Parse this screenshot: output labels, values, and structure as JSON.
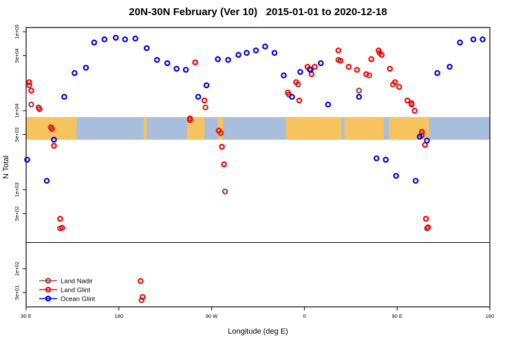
{
  "title": "20N-30N February (Ver 10)   2015-01-01 to 2020-12-18",
  "chart_data": {
    "type": "scatter",
    "title": "20N-30N February (Ver 10)   2015-01-01 to 2020-12-18",
    "xlabel": "Longitude (deg E)",
    "ylabel": "N Total",
    "y_scale": "log10",
    "x_range": [
      90,
      540
    ],
    "y_range": [
      33,
      113000
    ],
    "x_ticks": [
      {
        "value": 90,
        "label": "90 E"
      },
      {
        "value": 180,
        "label": "180"
      },
      {
        "value": 270,
        "label": "90 W"
      },
      {
        "value": 360,
        "label": "0"
      },
      {
        "value": 450,
        "label": "90 E"
      },
      {
        "value": 540,
        "label": "180"
      }
    ],
    "y_ticks": [
      {
        "value": 100000,
        "label": "1e+05"
      },
      {
        "value": 50000,
        "label": "5e+04"
      },
      {
        "value": 10000,
        "label": "1e+04"
      },
      {
        "value": 5000,
        "label": "5e+03"
      },
      {
        "value": 1000,
        "label": "1e+03"
      },
      {
        "value": 500,
        "label": "5e+02"
      },
      {
        "value": 100,
        "label": "1e+02"
      },
      {
        "value": 50,
        "label": "5e+01"
      }
    ],
    "separator_value": 215,
    "map_band": {
      "description": "world map strip for 20N-30N latitude band",
      "value_top": 8300,
      "value_bottom": 4300,
      "ocean_color": "#a9bedd",
      "land_color": "#f6c35e",
      "land_segments": [
        [
          90,
          139
        ],
        [
          204,
          207
        ],
        [
          246,
          263
        ],
        [
          276,
          281
        ],
        [
          342,
          396
        ],
        [
          399,
          437
        ],
        [
          442,
          481
        ]
      ]
    },
    "legend": {
      "position": "bottom-left",
      "entries": [
        {
          "label": "Land Nadir",
          "color": "#a0403a"
        },
        {
          "label": "Land Glint",
          "color": "#ff0000"
        },
        {
          "label": "Ocean Glint",
          "color": "#0000ee"
        }
      ]
    },
    "series": [
      {
        "name": "Land Nadir",
        "color": "#a0403a",
        "points": [
          [
            93,
            21000
          ],
          [
            95,
            12000
          ],
          [
            102,
            11000
          ],
          [
            114,
            6200
          ],
          [
            123,
            325
          ],
          [
            202,
            40
          ],
          [
            249,
            7600
          ],
          [
            264,
            11000
          ],
          [
            279,
            5200
          ],
          [
            283,
            950
          ],
          [
            345,
            16000
          ],
          [
            354,
            21500
          ],
          [
            365,
            33500
          ],
          [
            393,
            44000
          ],
          [
            413,
            18000
          ],
          [
            423,
            28000
          ],
          [
            433,
            54000
          ],
          [
            446,
            21500
          ],
          [
            464,
            12500
          ],
          [
            474,
            4900
          ],
          [
            479,
            325
          ]
        ]
      },
      {
        "name": "Land Glint",
        "color": "#ff0000",
        "points": [
          [
            93,
            23000
          ],
          [
            95,
            18000
          ],
          [
            103,
            10500
          ],
          [
            115,
            5900
          ],
          [
            117,
            3600
          ],
          [
            123,
            430
          ],
          [
            125,
            330
          ],
          [
            201,
            70
          ],
          [
            203,
            44
          ],
          [
            249,
            8000
          ],
          [
            254,
            41000
          ],
          [
            263,
            13500
          ],
          [
            277,
            5600
          ],
          [
            280,
            3500
          ],
          [
            282,
            2100
          ],
          [
            344,
            17000
          ],
          [
            352,
            23000
          ],
          [
            355,
            13500
          ],
          [
            363,
            36000
          ],
          [
            367,
            29000
          ],
          [
            370,
            36000
          ],
          [
            393,
            58000
          ],
          [
            395,
            43000
          ],
          [
            403,
            36000
          ],
          [
            411,
            33000
          ],
          [
            420,
            29000
          ],
          [
            425,
            45000
          ],
          [
            432,
            58000
          ],
          [
            435,
            51000
          ],
          [
            443,
            34000
          ],
          [
            448,
            23000
          ],
          [
            452,
            20000
          ],
          [
            460,
            13500
          ],
          [
            464,
            12000
          ],
          [
            467,
            10000
          ],
          [
            474,
            5400
          ],
          [
            477,
            3700
          ],
          [
            478,
            430
          ],
          [
            480,
            335
          ]
        ]
      },
      {
        "name": "Ocean Glint",
        "color": "#0000ee",
        "points": [
          [
            91,
            2400
          ],
          [
            110,
            1300
          ],
          [
            117,
            4300
          ],
          [
            127,
            15000
          ],
          [
            137,
            30000
          ],
          [
            148,
            35000
          ],
          [
            156,
            73000
          ],
          [
            166,
            80000
          ],
          [
            177,
            84000
          ],
          [
            186,
            80000
          ],
          [
            196,
            82000
          ],
          [
            207,
            62000
          ],
          [
            217,
            44000
          ],
          [
            227,
            40000
          ],
          [
            236,
            34000
          ],
          [
            245,
            33000
          ],
          [
            257,
            15000
          ],
          [
            265,
            21000
          ],
          [
            276,
            45000
          ],
          [
            286,
            44000
          ],
          [
            296,
            51000
          ],
          [
            304,
            54000
          ],
          [
            313,
            58000
          ],
          [
            322,
            65000
          ],
          [
            331,
            54000
          ],
          [
            340,
            28000
          ],
          [
            348,
            15000
          ],
          [
            356,
            31000
          ],
          [
            366,
            33000
          ],
          [
            376,
            40000
          ],
          [
            383,
            12000
          ],
          [
            413,
            15000
          ],
          [
            430,
            2500
          ],
          [
            439,
            2400
          ],
          [
            449,
            1500
          ],
          [
            468,
            1300
          ],
          [
            472,
            4700
          ],
          [
            479,
            4200
          ],
          [
            489,
            30000
          ],
          [
            501,
            36000
          ],
          [
            511,
            73000
          ],
          [
            524,
            80000
          ],
          [
            533,
            80000
          ]
        ]
      }
    ]
  }
}
